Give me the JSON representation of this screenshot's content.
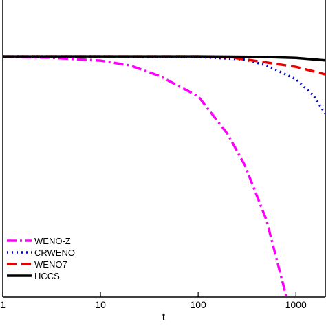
{
  "chart_data": {
    "type": "line",
    "x_label": "t",
    "log_x": true,
    "xlim": [
      1,
      2000
    ],
    "xticks": [
      1,
      10,
      100,
      1000
    ],
    "ylim": [
      0,
      1
    ],
    "legend": "lower left",
    "series": [
      {
        "name": "WENO-Z",
        "color": "#ff00ff",
        "dash": "dashdot",
        "x": [
          1,
          3,
          10,
          20,
          40,
          100,
          200,
          300,
          500,
          700,
          800
        ],
        "values": [
          0.81,
          0.806,
          0.796,
          0.78,
          0.745,
          0.676,
          0.549,
          0.444,
          0.259,
          0.074,
          0
        ]
      },
      {
        "name": "CRWENO",
        "color": "#0000cc",
        "dash": "dot",
        "x": [
          1,
          10,
          100,
          300,
          500,
          1000,
          1500,
          2000
        ],
        "values": [
          0.81,
          0.81,
          0.808,
          0.8,
          0.78,
          0.734,
          0.68,
          0.618
        ]
      },
      {
        "name": "WENO7",
        "color": "#ee0000",
        "dash": "dash",
        "x": [
          1,
          10,
          100,
          200,
          500,
          1000,
          2000
        ],
        "values": [
          0.81,
          0.81,
          0.81,
          0.808,
          0.79,
          0.775,
          0.75
        ]
      },
      {
        "name": "HCCS",
        "color": "#000000",
        "dash": "solid",
        "x": [
          1,
          10,
          100,
          500,
          1000,
          2000
        ],
        "values": [
          0.81,
          0.81,
          0.81,
          0.808,
          0.805,
          0.797
        ]
      }
    ]
  }
}
